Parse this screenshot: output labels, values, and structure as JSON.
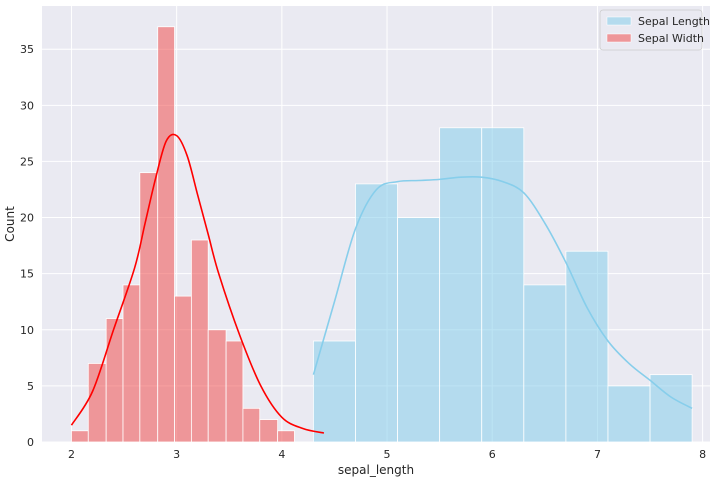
{
  "chart_data": {
    "type": "histogram",
    "xlabel": "sepal_length",
    "ylabel": "Count",
    "xlim": [
      1.72,
      8.07
    ],
    "ylim": [
      0,
      38.85
    ],
    "xticks": [
      2,
      3,
      4,
      5,
      6,
      7,
      8
    ],
    "yticks": [
      0,
      5,
      10,
      15,
      20,
      25,
      30,
      35
    ],
    "grid": true,
    "legend_position": "top-right",
    "series": [
      {
        "name": "Sepal Length",
        "color": "#87CEEB",
        "bin_edges": [
          4.3,
          4.7,
          5.1,
          5.5,
          5.9,
          6.3,
          6.7,
          7.1,
          7.5,
          7.9
        ],
        "counts": [
          9,
          23,
          20,
          28,
          28,
          14,
          17,
          5,
          6
        ],
        "kde": {
          "x": [
            4.3,
            4.5,
            4.7,
            4.9,
            5.1,
            5.3,
            5.5,
            5.7,
            5.9,
            6.1,
            6.3,
            6.5,
            6.7,
            6.9,
            7.1,
            7.3,
            7.5,
            7.7,
            7.9
          ],
          "y": [
            6,
            12.5,
            19,
            22.5,
            23.2,
            23.3,
            23.4,
            23.6,
            23.6,
            23.2,
            22.2,
            19.5,
            16,
            12,
            9,
            7,
            5.5,
            4,
            3
          ]
        }
      },
      {
        "name": "Sepal Width",
        "color": "#f05050",
        "bin_edges": [
          2.0,
          2.16,
          2.33,
          2.49,
          2.65,
          2.82,
          2.98,
          3.14,
          3.3,
          3.47,
          3.63,
          3.79,
          3.96,
          4.12,
          4.28,
          4.4
        ],
        "counts": [
          1,
          7,
          11,
          14,
          24,
          37,
          13,
          18,
          10,
          9,
          3,
          2,
          1,
          0,
          0
        ],
        "kde": {
          "x": [
            2.0,
            2.2,
            2.4,
            2.6,
            2.7,
            2.8,
            2.9,
            3.0,
            3.1,
            3.2,
            3.3,
            3.4,
            3.6,
            3.8,
            4.0,
            4.2,
            4.4
          ],
          "y": [
            1.5,
            4.5,
            10,
            15.5,
            19.5,
            23.5,
            26.8,
            27.3,
            25.5,
            22,
            18.5,
            15,
            9.5,
            5,
            2.2,
            1.2,
            0.8
          ]
        }
      }
    ]
  }
}
